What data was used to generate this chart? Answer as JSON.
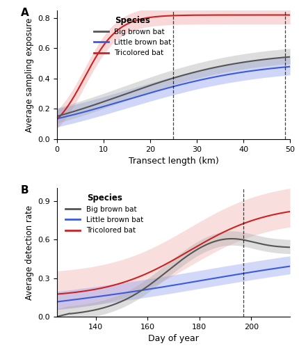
{
  "panel_A": {
    "xlabel": "Transect length (km)",
    "ylabel": "Average sampling exposure",
    "x_range": [
      0,
      50
    ],
    "y_range": [
      0,
      0.85
    ],
    "yticks": [
      0.0,
      0.2,
      0.4,
      0.6,
      0.8
    ],
    "xticks": [
      0,
      10,
      20,
      30,
      40,
      50
    ],
    "vlines": [
      25,
      49
    ],
    "bb_color": "#555555",
    "lb_color": "#3b5bdb",
    "tri_color": "#cc2222",
    "bb_fill": "#aaaaaa",
    "lb_fill": "#8899ee",
    "tri_fill": "#ee9999"
  },
  "panel_B": {
    "xlabel": "Day of year",
    "ylabel": "Average detection rate",
    "x_range": [
      125,
      215
    ],
    "y_range": [
      0,
      1.0
    ],
    "yticks": [
      0.0,
      0.3,
      0.6,
      0.9
    ],
    "xticks": [
      140,
      160,
      180,
      200
    ],
    "vlines": [
      197
    ],
    "bb_color": "#555555",
    "lb_color": "#3b5bdb",
    "tri_color": "#cc2222",
    "bb_fill": "#aaaaaa",
    "lb_fill": "#8899ee",
    "tri_fill": "#ee9999"
  },
  "background_color": "#ffffff"
}
